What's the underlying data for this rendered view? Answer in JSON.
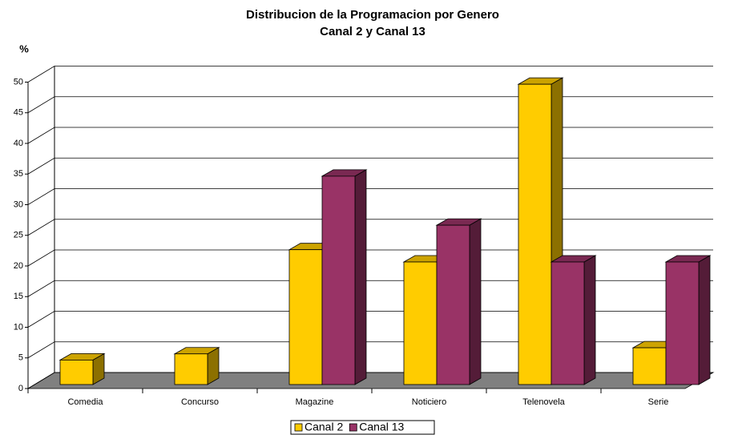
{
  "chart_data": {
    "type": "bar3d",
    "title": "Distribucion de la Programacion por Genero",
    "subtitle": "Canal 2 y Canal 13",
    "y_label": "%",
    "categories": [
      "Comedia",
      "Concurso",
      "Magazine",
      "Noticiero",
      "Telenovela",
      "Serie"
    ],
    "series": [
      {
        "name": "Canal 2",
        "color": "#ffcc00",
        "values": [
          4,
          5,
          22,
          20,
          49,
          6
        ]
      },
      {
        "name": "Canal 13",
        "color": "#993366",
        "values": [
          0,
          0,
          34,
          26,
          20,
          20
        ]
      }
    ],
    "ylim": [
      0,
      50
    ],
    "yticks": [
      0,
      5,
      10,
      15,
      20,
      25,
      30,
      35,
      40,
      45,
      50
    ],
    "grid": true,
    "legend": "bottom"
  }
}
